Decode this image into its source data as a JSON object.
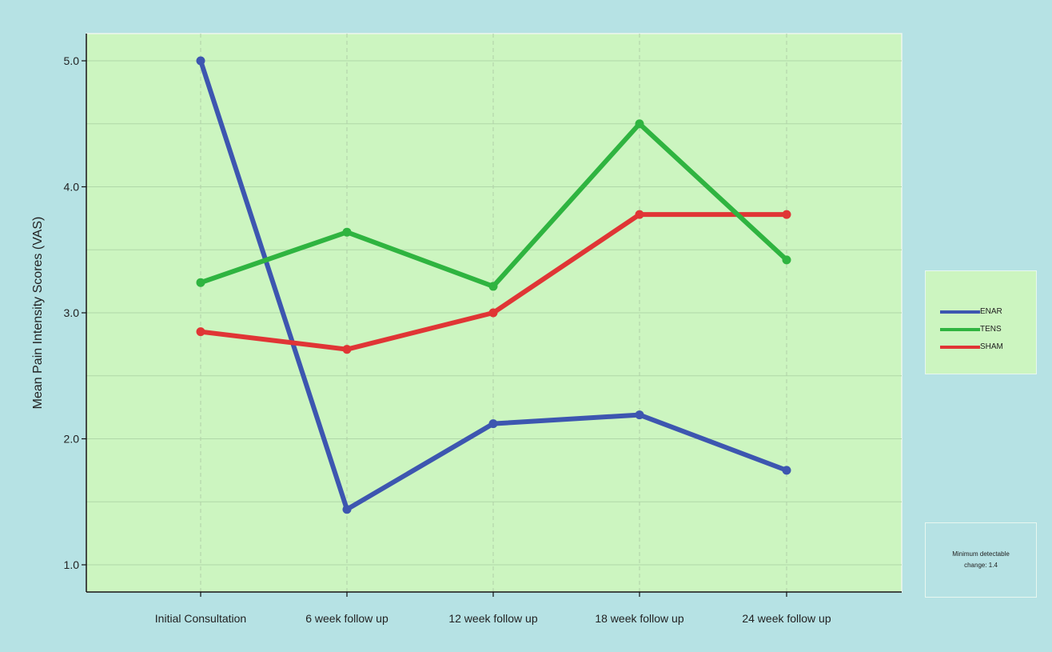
{
  "chart_data": {
    "type": "line",
    "title": "",
    "xlabel": "",
    "ylabel": "Mean Pain Intensity Scores (VAS)",
    "categories": [
      "Initial Consultation",
      "6 week follow up",
      "12 week follow up",
      "18 week follow up",
      "24 week follow up"
    ],
    "ylim": [
      0.8,
      5.2
    ],
    "yticks": [
      1.0,
      2.0,
      3.0,
      4.0,
      5.0
    ],
    "ytick_labels": [
      "1.0",
      "2.0",
      "3.0",
      "4.0",
      "5.0"
    ],
    "grid": true,
    "legend_position": "right",
    "background_color": "#ccf5c0",
    "page_background_color": "#b6e2e4",
    "series": [
      {
        "name": "ENAR",
        "color": "#3d56b0",
        "values": [
          5.0,
          1.44,
          2.12,
          2.19,
          1.75
        ]
      },
      {
        "name": "TENS",
        "color": "#2fb440",
        "values": [
          3.24,
          3.64,
          3.21,
          4.5,
          3.42
        ]
      },
      {
        "name": "SHAM",
        "color": "#e03535",
        "values": [
          2.85,
          2.71,
          3.0,
          3.78,
          3.78
        ]
      }
    ]
  },
  "annotation": {
    "text": "Minimum detectable change: 1.4"
  }
}
